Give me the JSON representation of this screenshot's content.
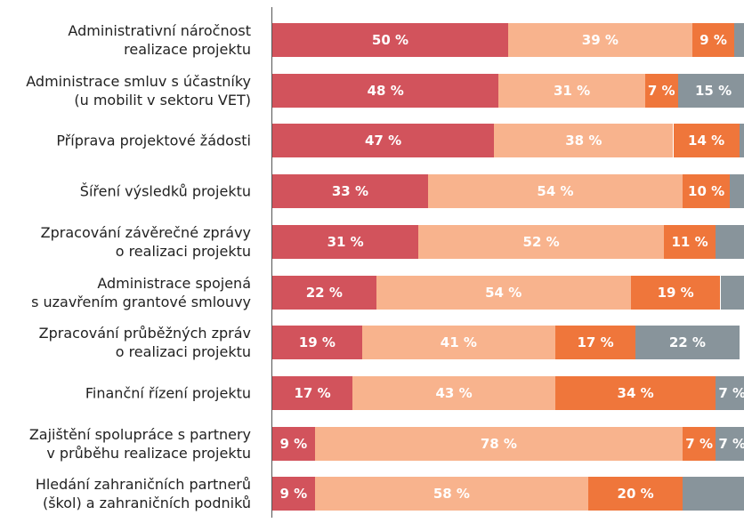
{
  "chart_data": {
    "type": "stacked-barh",
    "categories": [
      "Administrativní náročnost\nrealizace projektu",
      "Administrace smluv s účastníky\n(u mobilit v sektoru VET)",
      "Příprava projektové žádosti",
      "Šíření výsledků projektu",
      "Zpracování závěrečné zprávy\no realizaci projektu",
      "Administrace spojená\ns uzavřením grantové smlouvy",
      "Zpracování průběžných zpráv\no realizaci projektu",
      "Finanční řízení projektu",
      "Zajištění spolupráce s partnery\nv průběhu realizace projektu",
      "Hledání zahraničních partnerů\n(škol) a zahraničních podniků"
    ],
    "xlim": [
      0,
      100
    ],
    "series": [
      {
        "color": "#d2535c",
        "values": [
          50,
          48,
          47,
          33,
          31,
          22,
          19,
          17,
          9,
          9
        ],
        "value_labels": [
          "50 %",
          "48 %",
          "47 %",
          "33 %",
          "31 %",
          "22 %",
          "19 %",
          "17 %",
          "9 %",
          "9 %"
        ]
      },
      {
        "color": "#f8b38d",
        "values": [
          39,
          31,
          38,
          54,
          52,
          54,
          41,
          43,
          78,
          58
        ],
        "value_labels": [
          "39 %",
          "31 %",
          "38 %",
          "54 %",
          "52 %",
          "54 %",
          "41 %",
          "43 %",
          "78 %",
          "58 %"
        ]
      },
      {
        "color": "#ef763b",
        "values": [
          9,
          7,
          14,
          10,
          11,
          19,
          17,
          34,
          7,
          20
        ],
        "value_labels": [
          "9 %",
          "7 %",
          "14 %",
          "10 %",
          "11 %",
          "19 %",
          "17 %",
          "34 %",
          "7 %",
          "20 %"
        ]
      },
      {
        "color": "#88949b",
        "values": [
          2,
          15,
          1,
          3,
          6,
          5,
          22,
          7,
          7,
          13
        ],
        "value_labels": [
          null,
          "15 %",
          null,
          null,
          null,
          null,
          "22 %",
          "7 %",
          "7 %",
          null
        ]
      }
    ]
  }
}
